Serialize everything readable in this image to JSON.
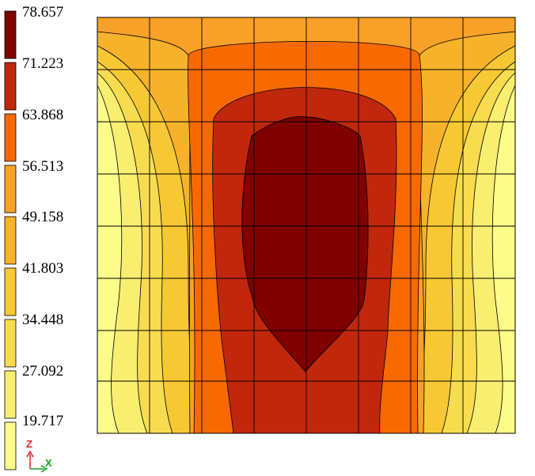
{
  "legend": {
    "labels": [
      "78.657",
      "71.223",
      "63.868",
      "56.513",
      "49.158",
      "41.803",
      "34.448",
      "27.092",
      "19.717"
    ],
    "colors": [
      "#800000",
      "#c0270c",
      "#f86a00",
      "#f8a028",
      "#f6b22a",
      "#f6c834",
      "#f8dc50",
      "#f8ee70",
      "#fcfc8a"
    ]
  },
  "axes": {
    "vertical_label": "Z",
    "horizontal_label": "X",
    "vertical_color": "#e02020",
    "horizontal_color": "#10a020"
  },
  "bands": [
    "#fcfc8a",
    "#f8ee70",
    "#f8dc50",
    "#f6c834",
    "#f6b22a",
    "#f8a028",
    "#f86a00",
    "#c0270c",
    "#800000"
  ]
}
